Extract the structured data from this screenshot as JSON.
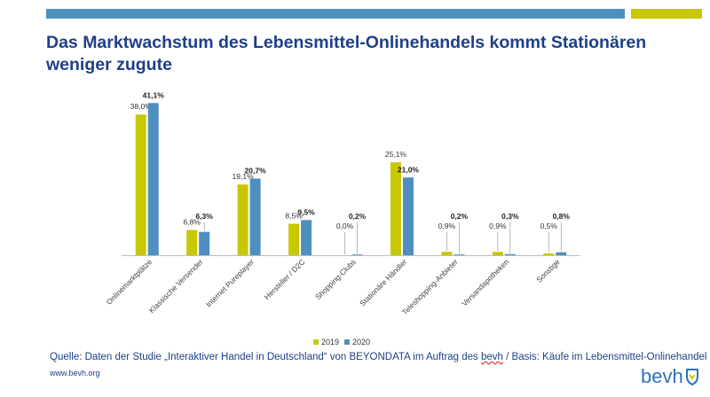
{
  "title": "Das Marktwachstum des Lebensmittel-Onlinehandels kommt Stationären weniger zugute",
  "colors": {
    "accent_blue": "#4f8fc0",
    "accent_green": "#c8c800",
    "title": "#1e3f88"
  },
  "chart_data": {
    "type": "bar",
    "categories": [
      "Onlinemarktplätze",
      "Klassische Versender",
      "Internet Pureplayer",
      "Hersteller / D2C",
      "Shopping-Clubs",
      "Stationäre Händler",
      "Teleshopping-Anbieter",
      "Versandapotheken",
      "Sonstige"
    ],
    "series": [
      {
        "name": "2019",
        "color": "#c8c800",
        "values": [
          38.0,
          6.8,
          19.1,
          8.5,
          0.0,
          25.1,
          0.9,
          0.9,
          0.5
        ],
        "labels": [
          "38,0%",
          "6,8%",
          "19,1%",
          "8,5%",
          "0,0%",
          "25,1%",
          "0,9%",
          "0,9%",
          "0,5%"
        ]
      },
      {
        "name": "2020",
        "color": "#4f8fc0",
        "values": [
          41.1,
          6.3,
          20.7,
          9.5,
          0.2,
          21.0,
          0.2,
          0.3,
          0.8
        ],
        "labels": [
          "41,1%",
          "6,3%",
          "20,7%",
          "9,5%",
          "0,2%",
          "21,0%",
          "0,2%",
          "0,3%",
          "0,8%"
        ]
      }
    ],
    "ylim": [
      0,
      45
    ],
    "legend": "bottom-center",
    "grid": false
  },
  "source": {
    "prefix": "Quelle: Daten der Studie „Interaktiver Handel in Deutschland“ von BEYONDATA im Auftrag des ",
    "bevh": "bevh",
    "suffix": " / Basis: Käufe im Lebensmittel-Onlinehandel"
  },
  "footer_url": "www.bevh.org",
  "logo_text": "bevh"
}
